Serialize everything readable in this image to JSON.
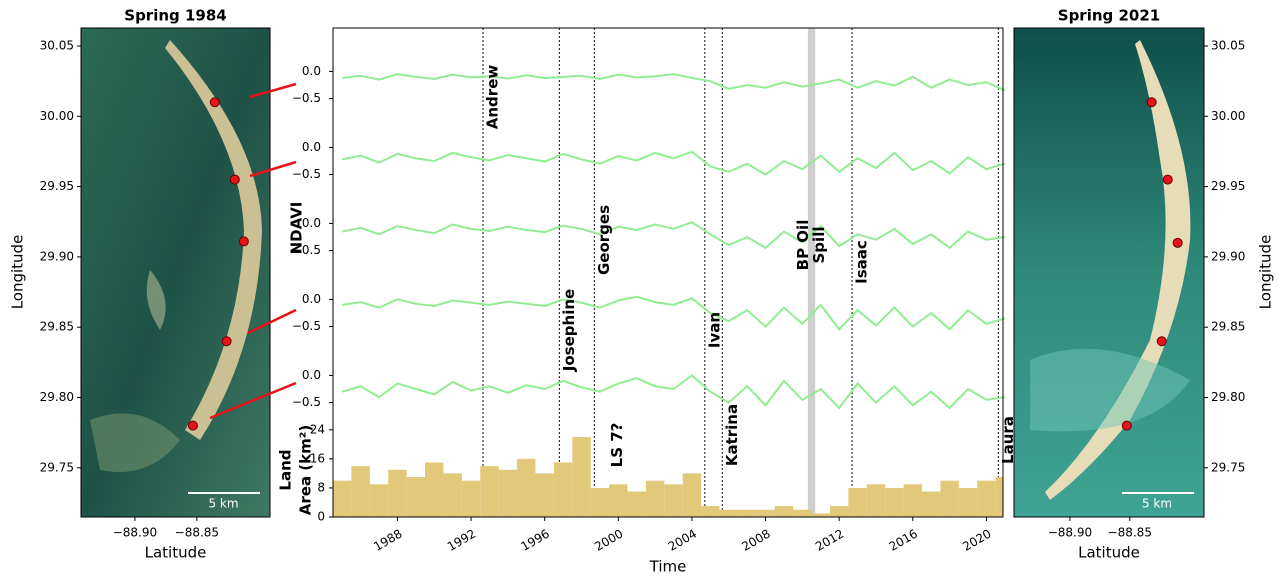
{
  "chart_data": [
    {
      "type": "map",
      "title": "Spring 1984",
      "xlabel": "Latitude",
      "ylabel": "Longitude",
      "scalebar": "5 km",
      "xlim": [
        -88.9435,
        -88.791
      ],
      "ylim": [
        29.715,
        30.0628
      ],
      "xticks": [
        {
          "value": -88.9,
          "label": "−88.90"
        },
        {
          "value": -88.85,
          "label": "−88.85"
        }
      ],
      "yticks": [
        {
          "value": 30.05,
          "label": "30.05"
        },
        {
          "value": 30.0,
          "label": "30.00"
        },
        29.95,
        {
          "value": 29.9,
          "label": "29.90"
        },
        29.85,
        {
          "value": 29.8,
          "label": "29.80"
        },
        29.75
      ],
      "color": "#e8121b",
      "x": [
        -88.8355,
        -88.8194,
        -88.8121,
        -88.826,
        -88.8532
      ],
      "y": [
        30.01,
        29.955,
        29.911,
        29.84,
        29.78
      ]
    },
    {
      "type": "stacked-lines",
      "xlabel": "Time",
      "ylabel": "NDAVI",
      "area_ylabel": [
        "Land",
        "Area (km²)"
      ],
      "xlim": [
        1984.5,
        2020.9
      ],
      "xticks": [
        1988,
        1992,
        1996,
        2000,
        2004,
        2008,
        2012,
        2016,
        2020
      ],
      "x": [
        1985,
        1986,
        1987,
        1988,
        1989,
        1990,
        1991,
        1992,
        1993,
        1994,
        1995,
        1996,
        1997,
        1998,
        1999,
        2000,
        2001,
        2002,
        2003,
        2004,
        2005,
        2006,
        2007,
        2008,
        2009,
        2010,
        2011,
        2012,
        2013,
        2014,
        2015,
        2016,
        2017,
        2018,
        2019,
        2020,
        2021
      ],
      "panel_ylim": [
        -0.6,
        0.8
      ],
      "panel_yticks": [
        {
          "value": 0,
          "label": "0.0"
        },
        {
          "value": -0.5,
          "label": "−0.5"
        }
      ],
      "color": "#90ee90",
      "series": [
        {
          "values": [
            -0.12,
            -0.08,
            -0.15,
            -0.05,
            -0.1,
            -0.14,
            -0.06,
            -0.11,
            -0.09,
            -0.13,
            -0.07,
            -0.12,
            -0.1,
            -0.08,
            -0.14,
            -0.06,
            -0.11,
            -0.09,
            -0.05,
            -0.12,
            -0.18,
            -0.32,
            -0.25,
            -0.3,
            -0.2,
            -0.28,
            -0.22,
            -0.15,
            -0.3,
            -0.18,
            -0.26,
            -0.1,
            -0.3,
            -0.15,
            -0.25,
            -0.2,
            -0.35
          ]
        },
        {
          "values": [
            -0.22,
            -0.15,
            -0.28,
            -0.12,
            -0.2,
            -0.25,
            -0.1,
            -0.18,
            -0.24,
            -0.14,
            -0.2,
            -0.26,
            -0.12,
            -0.22,
            -0.3,
            -0.16,
            -0.24,
            -0.1,
            -0.2,
            -0.08,
            -0.35,
            -0.45,
            -0.3,
            -0.5,
            -0.25,
            -0.4,
            -0.15,
            -0.45,
            -0.2,
            -0.38,
            -0.1,
            -0.42,
            -0.25,
            -0.48,
            -0.18,
            -0.4,
            -0.3
          ]
        },
        {
          "values": [
            -0.15,
            -0.08,
            -0.2,
            -0.05,
            -0.12,
            -0.18,
            -0.02,
            -0.1,
            -0.14,
            -0.06,
            -0.12,
            -0.16,
            -0.04,
            -0.1,
            -0.2,
            -0.06,
            -0.12,
            -0.02,
            -0.1,
            0.02,
            -0.2,
            -0.4,
            -0.25,
            -0.45,
            -0.15,
            -0.35,
            -0.05,
            -0.42,
            -0.2,
            -0.3,
            -0.1,
            -0.38,
            -0.2,
            -0.45,
            -0.15,
            -0.3,
            -0.25
          ]
        },
        {
          "values": [
            -0.1,
            -0.05,
            -0.15,
            0.0,
            -0.08,
            -0.12,
            -0.02,
            -0.06,
            -0.1,
            -0.04,
            -0.08,
            -0.12,
            0.0,
            -0.06,
            -0.15,
            -0.02,
            0.05,
            -0.05,
            -0.1,
            0.02,
            -0.25,
            -0.4,
            -0.2,
            -0.5,
            -0.15,
            -0.45,
            -0.1,
            -0.55,
            -0.2,
            -0.48,
            -0.15,
            -0.5,
            -0.25,
            -0.55,
            -0.2,
            -0.45,
            -0.35
          ]
        },
        {
          "values": [
            -0.3,
            -0.2,
            -0.4,
            -0.15,
            -0.25,
            -0.35,
            -0.12,
            -0.28,
            -0.2,
            -0.32,
            -0.18,
            -0.25,
            -0.1,
            -0.22,
            -0.3,
            -0.15,
            -0.05,
            -0.2,
            -0.25,
            0.0,
            -0.3,
            -0.5,
            -0.2,
            -0.55,
            -0.1,
            -0.45,
            -0.25,
            -0.6,
            -0.15,
            -0.5,
            -0.2,
            -0.55,
            -0.3,
            -0.6,
            -0.25,
            -0.45,
            -0.4
          ]
        }
      ],
      "area": {
        "color": "#e2c879",
        "ylim": [
          0,
          30
        ],
        "yticks": [
          0,
          8,
          16,
          24
        ],
        "values": [
          10,
          14,
          9,
          13,
          11,
          15,
          12,
          10,
          14,
          13,
          16,
          12,
          15,
          22,
          8,
          9,
          7,
          10,
          9,
          12,
          3,
          2,
          2,
          2,
          3,
          2,
          1,
          3,
          8,
          9,
          8,
          9,
          7,
          10,
          8,
          10,
          11
        ]
      },
      "annotations": [
        {
          "label": "Andrew",
          "x": 1992.65
        },
        {
          "label": "Josephine",
          "x": 1996.8
        },
        {
          "label": "Georges",
          "x": 1998.7
        },
        {
          "label": "LS 7?",
          "x": 1999.4,
          "line": false
        },
        {
          "label": "Ivan",
          "x": 2004.7
        },
        {
          "label": "Katrina",
          "x": 2005.65
        },
        {
          "label": [
            "BP Oil",
            "Spill"
          ],
          "x": 2010.5,
          "span": [
            2010.3,
            2010.7
          ]
        },
        {
          "label": "Isaac",
          "x": 2012.7
        },
        {
          "label": "Laura",
          "x": 2020.65
        }
      ]
    },
    {
      "type": "map",
      "title": "Spring 2021",
      "xlabel": "Latitude",
      "ylabel": "Longitude",
      "scalebar": "5 km",
      "xlim": [
        -88.9467,
        -88.788
      ],
      "ylim": [
        29.715,
        30.0628
      ],
      "xticks": [
        {
          "value": -88.9,
          "label": "−88.90"
        },
        {
          "value": -88.85,
          "label": "−88.85"
        }
      ],
      "yticks": [
        {
          "value": 30.05,
          "label": "30.05"
        },
        {
          "value": 30.0,
          "label": "30.00"
        },
        29.95,
        {
          "value": 29.9,
          "label": "29.90"
        },
        29.85,
        {
          "value": 29.8,
          "label": "29.80"
        },
        29.75
      ],
      "color": "#e8121b",
      "x": [
        -88.8317,
        -88.8183,
        -88.81,
        -88.8233,
        -88.8525
      ],
      "y": [
        30.01,
        29.955,
        29.91,
        29.84,
        29.78
      ]
    }
  ]
}
